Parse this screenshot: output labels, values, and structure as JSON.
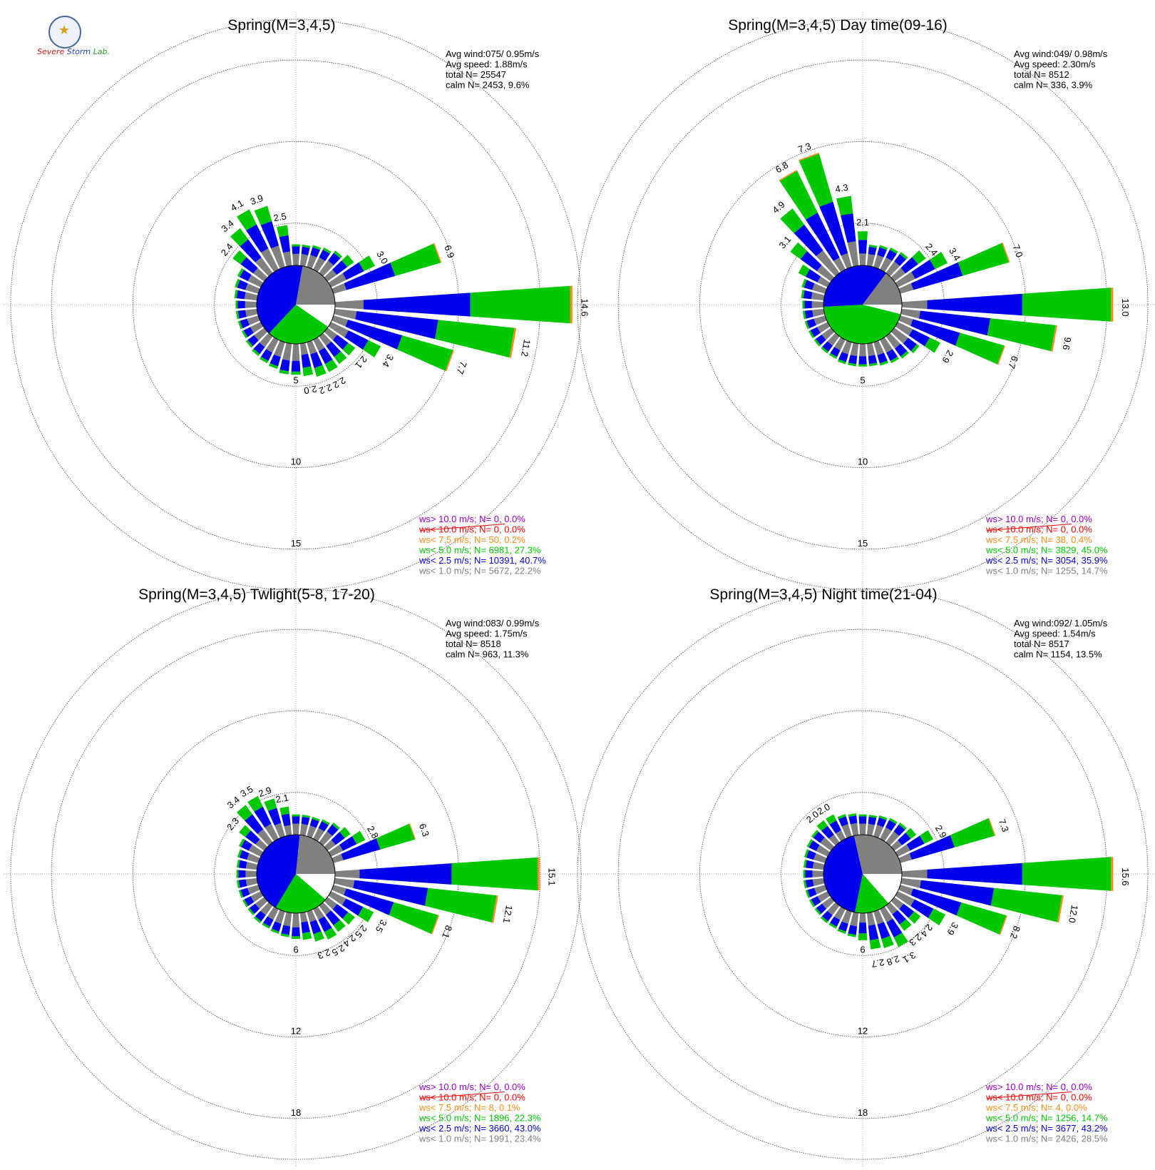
{
  "logo": {
    "text_severe": "Severe",
    "text_storm": "Storm",
    "text_lab": "Lab."
  },
  "legend_colors": [
    "#9a00c8",
    "#ff0000",
    "#ff8c1a",
    "#00c800",
    "#0000ee",
    "#808080"
  ],
  "chart_data": [
    {
      "type": "wind-rose",
      "title": "Spring(M=3,4,5)",
      "stats": [
        "Avg wind:075/ 0.95m/s",
        "Avg speed: 1.88m/s",
        "total N=       25547",
        "calm N=   2453,   9.6%"
      ],
      "ring_labels": [
        "5",
        "10",
        "15"
      ],
      "rmax": 17.5,
      "calm_pie_percent": [
        9.6,
        27.3,
        40.7,
        22.2
      ],
      "directions_deg": [
        0,
        10,
        20,
        30,
        40,
        50,
        60,
        70,
        80,
        90,
        100,
        110,
        120,
        130,
        140,
        150,
        160,
        170,
        180,
        190,
        200,
        210,
        220,
        230,
        240,
        250,
        260,
        270,
        280,
        290,
        300,
        310,
        320,
        330,
        340,
        350
      ],
      "freq": [
        1.3,
        1.3,
        1.4,
        1.5,
        1.7,
        2.0,
        3.0,
        6.9,
        null,
        14.6,
        11.2,
        7.7,
        3.4,
        2.1,
        2.1,
        2.2,
        2.2,
        2.0,
        1.9,
        1.9,
        1.7,
        1.6,
        1.5,
        1.4,
        1.3,
        1.3,
        1.3,
        1.3,
        1.4,
        1.5,
        1.6,
        2.4,
        3.4,
        4.1,
        3.9,
        2.5
      ],
      "freq_labels": [
        "",
        "",
        "",
        "",
        "",
        "",
        "3.0",
        "6.9",
        "",
        "14.6",
        "11.2",
        "7.7",
        "3.4",
        "2.1",
        "",
        "2.2",
        "2.2",
        "2.0",
        "",
        "",
        "",
        "",
        "",
        "",
        "",
        "",
        "",
        "",
        "",
        "",
        "",
        "2.4",
        "3.4",
        "4.1",
        "3.9",
        "2.5"
      ],
      "legend": [
        "ws> 10.0 m/s; N=     0,  0.0%",
        "ws< 10.0 m/s; N=     0,  0.0%",
        "ws<  7.5 m/s; N=    50,  0.2%",
        "ws<  5.0 m/s; N=  6981, 27.3%",
        "ws<  2.5 m/s; N= 10391, 40.7%",
        "ws<  1.0 m/s; N=  5672, 22.2%"
      ]
    },
    {
      "type": "wind-rose",
      "title": "Spring(M=3,4,5) Day time(09-16)",
      "stats": [
        "Avg wind:049/ 0.98m/s",
        "Avg speed: 2.30m/s",
        "total N=        8512",
        "calm N=    336,   3.9%"
      ],
      "ring_labels": [
        "5",
        "10",
        "15"
      ],
      "rmax": 17.5,
      "calm_pie_percent": [
        3.9,
        45.0,
        35.9,
        14.7
      ],
      "directions_deg": [
        0,
        10,
        20,
        30,
        40,
        50,
        60,
        70,
        80,
        90,
        100,
        110,
        120,
        130,
        140,
        150,
        160,
        170,
        180,
        190,
        200,
        210,
        220,
        230,
        240,
        250,
        260,
        270,
        280,
        290,
        300,
        310,
        320,
        330,
        340,
        350
      ],
      "freq": [
        2.1,
        1.3,
        1.4,
        1.5,
        1.6,
        2.4,
        3.4,
        7.0,
        null,
        13.0,
        9.6,
        6.7,
        2.9,
        1.9,
        1.7,
        1.6,
        1.5,
        1.4,
        1.4,
        1.4,
        1.4,
        1.3,
        1.3,
        1.3,
        1.3,
        1.3,
        1.3,
        1.3,
        1.4,
        1.5,
        2.0,
        3.1,
        4.9,
        6.8,
        7.3,
        4.3
      ],
      "freq_labels": [
        "2.1",
        "",
        "",
        "",
        "",
        "2.4",
        "3.4",
        "7.0",
        "",
        "13.0",
        "9.6",
        "6.7",
        "2.9",
        "",
        "",
        "",
        "",
        "",
        "",
        "",
        "",
        "",
        "",
        "",
        "",
        "",
        "",
        "",
        "",
        "",
        "",
        "3.1",
        "4.9",
        "6.8",
        "7.3",
        "4.3"
      ],
      "legend": [
        "ws> 10.0 m/s; N=     0,  0.0%",
        "ws< 10.0 m/s; N=     0,  0.0%",
        "ws<  7.5 m/s; N=    38,  0.4%",
        "ws<  5.0 m/s; N=  3829, 45.0%",
        "ws<  2.5 m/s; N=  3054, 35.9%",
        "ws<  1.0 m/s; N=  1255, 14.7%"
      ]
    },
    {
      "type": "wind-rose",
      "title": "Spring(M=3,4,5) Twlight(5-8, 17-20)",
      "stats": [
        "Avg wind:083/ 0.99m/s",
        "Avg speed: 1.75m/s",
        "total N=        8518",
        "calm N=    963,  11.3%"
      ],
      "ring_labels": [
        "6",
        "12",
        "18"
      ],
      "rmax": 21,
      "calm_pie_percent": [
        11.3,
        22.3,
        43.0,
        23.4
      ],
      "directions_deg": [
        0,
        10,
        20,
        30,
        40,
        50,
        60,
        70,
        80,
        90,
        100,
        110,
        120,
        130,
        140,
        150,
        160,
        170,
        180,
        190,
        200,
        210,
        220,
        230,
        240,
        250,
        260,
        270,
        280,
        290,
        300,
        310,
        320,
        330,
        340,
        350
      ],
      "freq": [
        1.5,
        1.5,
        1.5,
        1.6,
        1.8,
        2.1,
        2.8,
        6.3,
        null,
        15.1,
        12.1,
        8.1,
        3.5,
        2.5,
        2.4,
        2.5,
        2.3,
        2.0,
        1.9,
        1.8,
        1.7,
        1.6,
        1.6,
        1.5,
        1.5,
        1.5,
        1.5,
        1.5,
        1.5,
        1.6,
        1.8,
        2.3,
        3.4,
        3.5,
        2.9,
        2.1
      ],
      "freq_labels": [
        "",
        "",
        "",
        "",
        "",
        "",
        "2.8",
        "6.3",
        "",
        "15.1",
        "12.1",
        "8.1",
        "3.5",
        "2.5",
        "2.4",
        "2.5",
        "2.3",
        "",
        "",
        "",
        "",
        "",
        "",
        "",
        "",
        "",
        "",
        "",
        "",
        "",
        "",
        "2.3",
        "3.4",
        "3.5",
        "2.9",
        "2.1"
      ],
      "legend": [
        "ws> 10.0 m/s; N=     0,  0.0%",
        "ws< 10.0 m/s; N=     0,  0.0%",
        "ws<  7.5 m/s; N=     8,  0.1%",
        "ws<  5.0 m/s; N=  1896, 22.3%",
        "ws<  2.5 m/s; N=  3660, 43.0%",
        "ws<  1.0 m/s; N=  1991, 23.4%"
      ]
    },
    {
      "type": "wind-rose",
      "title": "Spring(M=3,4,5) Night time(21-04)",
      "stats": [
        "Avg wind:092/ 1.05m/s",
        "Avg speed: 1.54m/s",
        "total N=        8517",
        "calm N=   1154,  13.5%"
      ],
      "ring_labels": [
        "6",
        "12",
        "18"
      ],
      "rmax": 21,
      "calm_pie_percent": [
        13.5,
        14.7,
        43.2,
        28.5
      ],
      "directions_deg": [
        0,
        10,
        20,
        30,
        40,
        50,
        60,
        70,
        80,
        90,
        100,
        110,
        120,
        130,
        140,
        150,
        160,
        170,
        180,
        190,
        200,
        210,
        220,
        230,
        240,
        250,
        260,
        270,
        280,
        290,
        300,
        310,
        320,
        330,
        340,
        350
      ],
      "freq": [
        1.5,
        1.5,
        1.6,
        1.7,
        1.8,
        2.0,
        2.9,
        7.3,
        null,
        15.6,
        12.0,
        8.2,
        3.9,
        2.4,
        2.3,
        3.1,
        2.8,
        2.7,
        2.0,
        1.8,
        1.7,
        1.6,
        1.6,
        1.5,
        1.5,
        1.5,
        1.5,
        1.5,
        1.5,
        1.6,
        1.7,
        1.8,
        2.0,
        2.0,
        1.7,
        1.6
      ],
      "freq_labels": [
        "",
        "",
        "",
        "",
        "",
        "",
        "2.9",
        "7.3",
        "",
        "15.6",
        "12.0",
        "8.2",
        "3.9",
        "2.4",
        "2.3",
        "3.1",
        "2.8",
        "2.7",
        "",
        "",
        "",
        "",
        "",
        "",
        "",
        "",
        "",
        "",
        "",
        "",
        "",
        "",
        "2.0",
        "2.0",
        "",
        ""
      ],
      "legend": [
        "ws> 10.0 m/s; N=     0,  0.0%",
        "ws< 10.0 m/s; N=     0,  0.0%",
        "ws<  7.5 m/s; N=     4,  0.0%",
        "ws<  5.0 m/s; N=  1256, 14.7%",
        "ws<  2.5 m/s; N=  3677, 43.2%",
        "ws<  1.0 m/s; N=  2426, 28.5%"
      ]
    }
  ]
}
